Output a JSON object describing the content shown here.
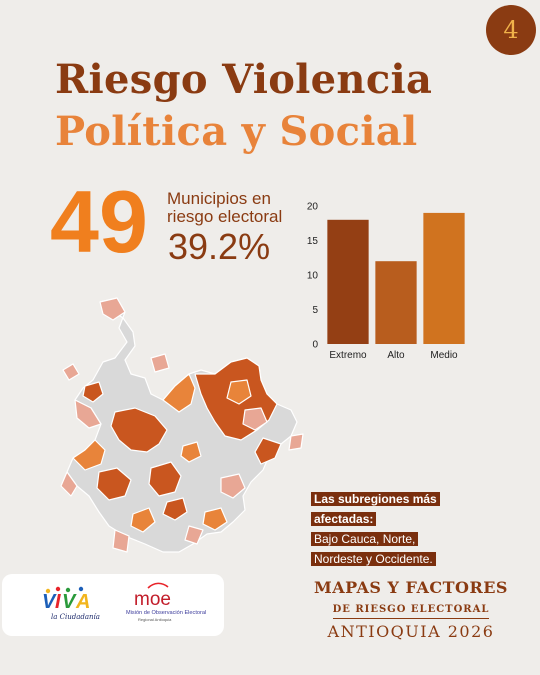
{
  "badge": "4",
  "title_line1": "Riesgo Violencia",
  "title_line2": "Política y Social",
  "stat": {
    "number": "49",
    "text_line1": "Municipios en",
    "text_line2": "riesgo electoral",
    "percent": "39.2%"
  },
  "chart_data": {
    "type": "bar",
    "categories": [
      "Extremo",
      "Alto",
      "Medio"
    ],
    "values": [
      18,
      12,
      19
    ],
    "title": "",
    "xlabel": "",
    "ylabel": "",
    "ylim": [
      0,
      20
    ],
    "yticks": [
      0,
      5,
      10,
      15,
      20
    ],
    "colors": [
      "#943f14",
      "#b85d1e",
      "#d0731f"
    ],
    "grid": false
  },
  "callout": {
    "heading_line1": "Las subregiones más",
    "heading_line2": "afectadas:",
    "body_line1": "Bajo Cauca, Norte,",
    "body_line2": "Nordeste y Occidente."
  },
  "logos": {
    "viva_logo_text": "VIVA la Ciudadanía",
    "moe_logo_text": "moe",
    "moe_subtitle": "Misión de Observación Electoral",
    "moe_sub2": "Regional Antioquia"
  },
  "footer": {
    "line1": "MAPAS Y FACTORES",
    "line2": "DE RIESGO ELECTORAL",
    "line3": "ANTIOQUIA 2026"
  },
  "colors": {
    "dark_brown": "#8a3b12",
    "orange": "#f07f1e",
    "light_orange": "#e8833a",
    "map_extremo": "#c9561f",
    "map_alto": "#e8843a",
    "map_medio": "#e8a795",
    "map_none": "#d9d9d9"
  }
}
